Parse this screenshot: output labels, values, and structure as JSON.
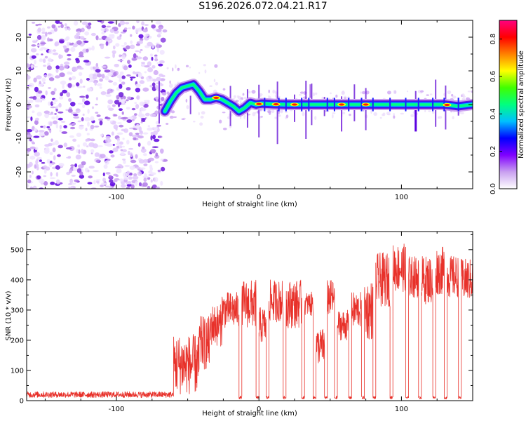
{
  "title": "S196.2026.072.04.21.R17",
  "chart_data": [
    {
      "type": "heatmap",
      "name": "spectrogram",
      "xlabel": "Height of straight line (km)",
      "ylabel": "Frequency (Hz)",
      "xlim": [
        -163,
        150
      ],
      "ylim": [
        -25,
        25
      ],
      "x_ticks": [
        -100,
        0,
        100
      ],
      "y_ticks": [
        -20,
        -10,
        0,
        10,
        20
      ],
      "x_tick_labels": [
        "-100",
        "0",
        "100"
      ],
      "y_tick_labels": [
        "-20",
        "-10",
        "0",
        "10",
        "20"
      ],
      "noise_region_x": [
        -163,
        -66
      ],
      "ridge": {
        "x": [
          -66,
          -62,
          -58,
          -54,
          -50,
          -46,
          -42,
          -38,
          -34,
          -30,
          -26,
          -22,
          -18,
          -14,
          -10,
          -6,
          -2,
          2,
          6,
          10,
          20,
          30,
          40,
          50,
          60,
          70,
          80,
          90,
          100,
          110,
          120,
          130,
          140,
          150
        ],
        "y": [
          -2,
          1,
          3.5,
          5,
          5.5,
          6,
          4,
          1.5,
          1.5,
          2,
          1.5,
          0.5,
          -0.5,
          -2,
          -1,
          0.5,
          0,
          0.3,
          0.2,
          0.1,
          0,
          0,
          0,
          0,
          0,
          0,
          0,
          0,
          0,
          0,
          0,
          0,
          -0.5,
          0
        ]
      },
      "hot_spots_x": [
        -30,
        0,
        12,
        25,
        58,
        75,
        132
      ],
      "colorbar": {
        "label": "Normalized spectral amplitude",
        "range": [
          0,
          0.9
        ],
        "ticks": [
          0.0,
          0.2,
          0.4,
          0.6,
          0.8
        ],
        "tick_labels": [
          "0.0",
          "0.2",
          "0.4",
          "0.6",
          "0.8"
        ],
        "colors": [
          "#ffffff",
          "#c9a0f0",
          "#8000ff",
          "#0000ff",
          "#00c0ff",
          "#00ff80",
          "#40ff00",
          "#ffff00",
          "#ff8000",
          "#ff0000",
          "#ff0080"
        ]
      }
    },
    {
      "type": "line",
      "name": "snr",
      "xlabel": "Height of straight line (km)",
      "ylabel": "SNR (10 * v/v)",
      "xlim": [
        -163,
        150
      ],
      "ylim": [
        0,
        560
      ],
      "x_ticks": [
        -100,
        0,
        100
      ],
      "y_ticks": [
        0,
        100,
        200,
        300,
        400,
        500
      ],
      "x_tick_labels": [
        "-100",
        "0",
        "100"
      ],
      "y_tick_labels": [
        "0",
        "100",
        "200",
        "300",
        "400",
        "500"
      ],
      "color": "#e8312a",
      "segments": [
        {
          "x0": -163,
          "x1": -60,
          "base": 20,
          "amp": 10
        },
        {
          "x0": -60,
          "x1": -42,
          "base": 120,
          "amp": 100
        },
        {
          "x0": -42,
          "x1": -34,
          "base": 190,
          "amp": 90
        },
        {
          "x0": -34,
          "x1": -26,
          "base": 250,
          "amp": 70
        },
        {
          "x0": -26,
          "x1": -14,
          "base": 300,
          "amp": 60
        },
        {
          "x0": -14,
          "x1": -12,
          "base": 10,
          "amp": 5
        },
        {
          "x0": -12,
          "x1": -2,
          "base": 320,
          "amp": 80
        },
        {
          "x0": -2,
          "x1": 0,
          "base": 10,
          "amp": 5
        },
        {
          "x0": 0,
          "x1": 5,
          "base": 250,
          "amp": 60
        },
        {
          "x0": 5,
          "x1": 7,
          "base": 10,
          "amp": 5
        },
        {
          "x0": 7,
          "x1": 17,
          "base": 330,
          "amp": 70
        },
        {
          "x0": 17,
          "x1": 19,
          "base": 10,
          "amp": 5
        },
        {
          "x0": 19,
          "x1": 30,
          "base": 320,
          "amp": 80
        },
        {
          "x0": 30,
          "x1": 32,
          "base": 10,
          "amp": 5
        },
        {
          "x0": 32,
          "x1": 38,
          "base": 320,
          "amp": 40
        },
        {
          "x0": 38,
          "x1": 40,
          "base": 10,
          "amp": 5
        },
        {
          "x0": 40,
          "x1": 46,
          "base": 180,
          "amp": 60
        },
        {
          "x0": 46,
          "x1": 48,
          "base": 10,
          "amp": 5
        },
        {
          "x0": 48,
          "x1": 53,
          "base": 340,
          "amp": 60
        },
        {
          "x0": 53,
          "x1": 55,
          "base": 10,
          "amp": 5
        },
        {
          "x0": 55,
          "x1": 63,
          "base": 250,
          "amp": 50
        },
        {
          "x0": 63,
          "x1": 65,
          "base": 10,
          "amp": 5
        },
        {
          "x0": 65,
          "x1": 72,
          "base": 300,
          "amp": 60
        },
        {
          "x0": 72,
          "x1": 74,
          "base": 10,
          "amp": 5
        },
        {
          "x0": 74,
          "x1": 80,
          "base": 300,
          "amp": 100
        },
        {
          "x0": 80,
          "x1": 82,
          "base": 10,
          "amp": 5
        },
        {
          "x0": 82,
          "x1": 92,
          "base": 400,
          "amp": 90
        },
        {
          "x0": 92,
          "x1": 94,
          "base": 10,
          "amp": 5
        },
        {
          "x0": 94,
          "x1": 103,
          "base": 440,
          "amp": 80
        },
        {
          "x0": 103,
          "x1": 105,
          "base": 10,
          "amp": 5
        },
        {
          "x0": 105,
          "x1": 112,
          "base": 410,
          "amp": 70
        },
        {
          "x0": 112,
          "x1": 114,
          "base": 10,
          "amp": 5
        },
        {
          "x0": 114,
          "x1": 122,
          "base": 400,
          "amp": 80
        },
        {
          "x0": 122,
          "x1": 124,
          "base": 10,
          "amp": 5
        },
        {
          "x0": 124,
          "x1": 130,
          "base": 430,
          "amp": 80
        },
        {
          "x0": 130,
          "x1": 132,
          "base": 10,
          "amp": 5
        },
        {
          "x0": 132,
          "x1": 140,
          "base": 410,
          "amp": 70
        },
        {
          "x0": 140,
          "x1": 142,
          "base": 10,
          "amp": 5
        },
        {
          "x0": 142,
          "x1": 150,
          "base": 400,
          "amp": 70
        }
      ]
    }
  ]
}
